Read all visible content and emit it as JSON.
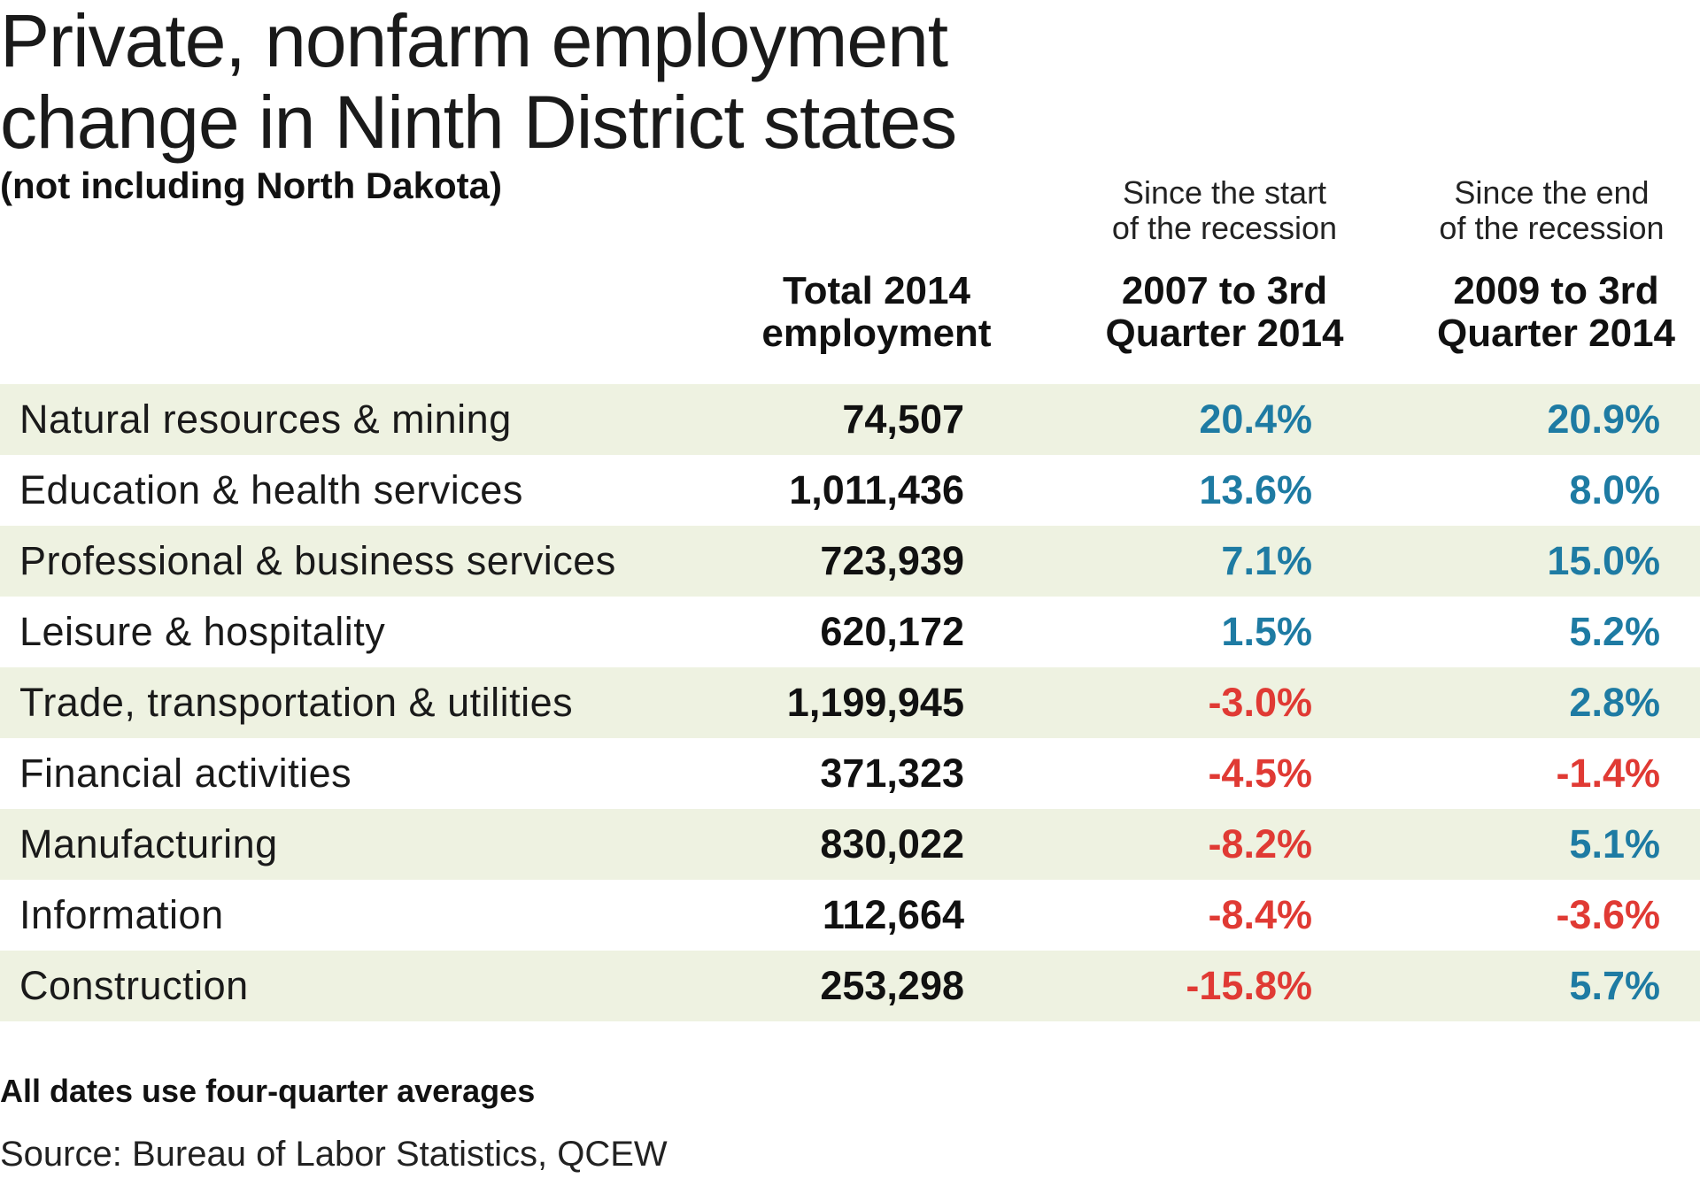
{
  "chart_data": {
    "type": "table",
    "title_lines": [
      "Private, nonfarm employment",
      "change in Ninth District states"
    ],
    "subtitle": "(not including North Dakota)",
    "columns": [
      {
        "note_lines": [],
        "header_lines": [
          "Total 2014",
          "employment"
        ]
      },
      {
        "note_lines": [
          "Since the start",
          "of the recession"
        ],
        "header_lines": [
          "2007 to 3rd",
          "Quarter 2014"
        ]
      },
      {
        "note_lines": [
          "Since the end",
          "of the recession"
        ],
        "header_lines": [
          "2009 to 3rd",
          "Quarter 2014"
        ]
      }
    ],
    "rows": [
      {
        "sector": "Natural resources & mining",
        "total": "74,507",
        "since_2007": "20.4%",
        "since_2009": "20.9%",
        "since_2007_value": 20.4,
        "since_2009_value": 20.9
      },
      {
        "sector": "Education & health services",
        "total": "1,011,436",
        "since_2007": "13.6%",
        "since_2009": "8.0%",
        "since_2007_value": 13.6,
        "since_2009_value": 8.0
      },
      {
        "sector": "Professional & business services",
        "total": "723,939",
        "since_2007": "7.1%",
        "since_2009": "15.0%",
        "since_2007_value": 7.1,
        "since_2009_value": 15.0
      },
      {
        "sector": "Leisure & hospitality",
        "total": "620,172",
        "since_2007": "1.5%",
        "since_2009": "5.2%",
        "since_2007_value": 1.5,
        "since_2009_value": 5.2
      },
      {
        "sector": "Trade, transportation & utilities",
        "total": "1,199,945",
        "since_2007": "-3.0%",
        "since_2009": "2.8%",
        "since_2007_value": -3.0,
        "since_2009_value": 2.8
      },
      {
        "sector": "Financial activities",
        "total": "371,323",
        "since_2007": "-4.5%",
        "since_2009": "-1.4%",
        "since_2007_value": -4.5,
        "since_2009_value": -1.4
      },
      {
        "sector": "Manufacturing",
        "total": "830,022",
        "since_2007": "-8.2%",
        "since_2009": "5.1%",
        "since_2007_value": -8.2,
        "since_2009_value": 5.1
      },
      {
        "sector": "Information",
        "total": "112,664",
        "since_2007": "-8.4%",
        "since_2009": "-3.6%",
        "since_2007_value": -8.4,
        "since_2009_value": -3.6
      },
      {
        "sector": "Construction",
        "total": "253,298",
        "since_2007": "-15.8%",
        "since_2009": "5.7%",
        "since_2007_value": -15.8,
        "since_2009_value": 5.7
      }
    ],
    "footnote": "All dates use four-quarter averages",
    "source": "Source: Bureau of Labor Statistics, QCEW"
  },
  "colors": {
    "positive": "#1e7ba3",
    "negative": "#e03a34",
    "stripe": "#eef2e1"
  }
}
